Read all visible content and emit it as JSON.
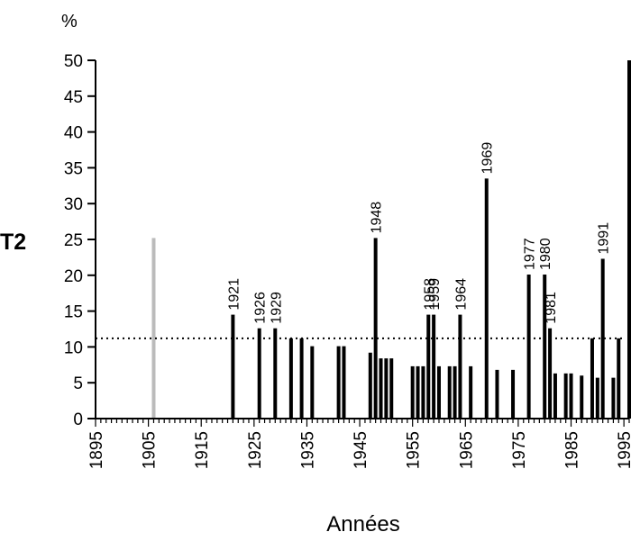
{
  "chart_data": {
    "type": "bar",
    "unit_label": "%",
    "series_label": "T2",
    "xlabel": "Années",
    "ylabel": "",
    "xlim": [
      1895,
      1996
    ],
    "ylim": [
      0,
      50
    ],
    "y_ticks": [
      0,
      5,
      10,
      15,
      20,
      25,
      30,
      35,
      40,
      45,
      50
    ],
    "x_ticks": [
      1895,
      1905,
      1915,
      1925,
      1935,
      1945,
      1955,
      1965,
      1975,
      1985,
      1995
    ],
    "threshold": 11.2,
    "colors": {
      "bar": "#000000",
      "highlight": "#bbbbbb",
      "axis": "#000000"
    },
    "bars": [
      {
        "year": 1906,
        "value": 25.2,
        "highlight": true
      },
      {
        "year": 1921,
        "value": 14.5,
        "label": "1921"
      },
      {
        "year": 1926,
        "value": 12.6,
        "label": "1926"
      },
      {
        "year": 1929,
        "value": 12.6,
        "label": "1929"
      },
      {
        "year": 1932,
        "value": 11.2
      },
      {
        "year": 1934,
        "value": 11.2
      },
      {
        "year": 1936,
        "value": 10.1
      },
      {
        "year": 1941,
        "value": 10.1
      },
      {
        "year": 1942,
        "value": 10.1
      },
      {
        "year": 1947,
        "value": 9.2
      },
      {
        "year": 1948,
        "value": 25.2,
        "label": "1948"
      },
      {
        "year": 1949,
        "value": 8.4
      },
      {
        "year": 1950,
        "value": 8.4
      },
      {
        "year": 1951,
        "value": 8.4
      },
      {
        "year": 1955,
        "value": 7.3
      },
      {
        "year": 1956,
        "value": 7.3
      },
      {
        "year": 1957,
        "value": 7.3
      },
      {
        "year": 1958,
        "value": 14.5,
        "label": "1958"
      },
      {
        "year": 1959,
        "value": 14.5,
        "label": "1959"
      },
      {
        "year": 1960,
        "value": 7.3
      },
      {
        "year": 1962,
        "value": 7.3
      },
      {
        "year": 1963,
        "value": 7.3
      },
      {
        "year": 1964,
        "value": 14.5,
        "label": "1964"
      },
      {
        "year": 1966,
        "value": 7.3
      },
      {
        "year": 1969,
        "value": 33.5,
        "label": "1969"
      },
      {
        "year": 1971,
        "value": 6.8
      },
      {
        "year": 1974,
        "value": 6.8
      },
      {
        "year": 1977,
        "value": 20.1,
        "label": "1977"
      },
      {
        "year": 1980,
        "value": 20.1,
        "label": "1980"
      },
      {
        "year": 1981,
        "value": 12.6,
        "label": "1981"
      },
      {
        "year": 1982,
        "value": 6.3
      },
      {
        "year": 1984,
        "value": 6.3
      },
      {
        "year": 1985,
        "value": 6.3
      },
      {
        "year": 1987,
        "value": 6.0
      },
      {
        "year": 1989,
        "value": 11.2
      },
      {
        "year": 1990,
        "value": 5.7
      },
      {
        "year": 1991,
        "value": 22.3,
        "label": "1991"
      },
      {
        "year": 1993,
        "value": 5.7
      },
      {
        "year": 1994,
        "value": 11.2
      },
      {
        "year": 1996,
        "value": 50.0
      }
    ]
  }
}
